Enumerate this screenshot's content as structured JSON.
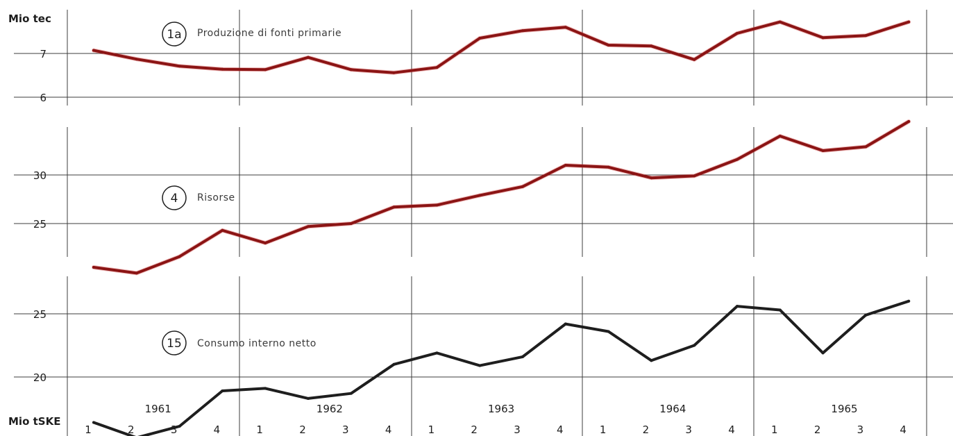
{
  "colors": {
    "series_red": "#8b1414",
    "series_red_glow": "#d23c3c",
    "series_black": "#1e1e1e",
    "grid": "#3c3c3c"
  },
  "x_axis": {
    "quarters": [
      "1",
      "2",
      "3",
      "4",
      "1",
      "2",
      "3",
      "4",
      "1",
      "2",
      "3",
      "4",
      "1",
      "2",
      "3",
      "4",
      "1",
      "2",
      "3",
      "4"
    ],
    "years": [
      "1961",
      "1962",
      "1963",
      "1964",
      "1965"
    ]
  },
  "units": {
    "top": "Mio tec",
    "bottom": "Mio tSKE"
  },
  "chart_data": [
    {
      "type": "line",
      "badge": "1a",
      "title": "Produzione di fonti primarie",
      "unit": "Mio tec",
      "yticks": [
        7,
        6
      ],
      "series": [
        {
          "values": [
            7.07,
            6.87,
            6.71,
            6.64,
            6.63,
            6.91,
            6.63,
            6.56,
            6.68,
            7.35,
            7.52,
            7.6,
            7.19,
            7.17,
            6.86,
            7.46,
            7.72,
            7.36,
            7.41,
            7.72
          ]
        }
      ]
    },
    {
      "type": "line",
      "badge": "4",
      "title": "Risorse",
      "yticks": [
        30,
        25
      ],
      "series": [
        {
          "values": [
            20.5,
            19.9,
            21.6,
            24.3,
            23.0,
            24.7,
            25.0,
            26.7,
            26.9,
            27.9,
            28.8,
            31.0,
            30.8,
            29.7,
            29.9,
            31.6,
            34.0,
            32.5,
            32.9,
            35.5
          ]
        }
      ]
    },
    {
      "type": "line",
      "badge": "15",
      "title": "Consumo interno netto",
      "unit": "Mio tSKE",
      "yticks": [
        25,
        20
      ],
      "series": [
        {
          "values": [
            16.4,
            15.2,
            16.1,
            18.9,
            19.1,
            18.3,
            18.7,
            21.0,
            21.9,
            20.9,
            21.6,
            24.2,
            23.6,
            21.3,
            22.5,
            25.6,
            25.3,
            21.9,
            24.9,
            26.0
          ]
        }
      ]
    }
  ]
}
